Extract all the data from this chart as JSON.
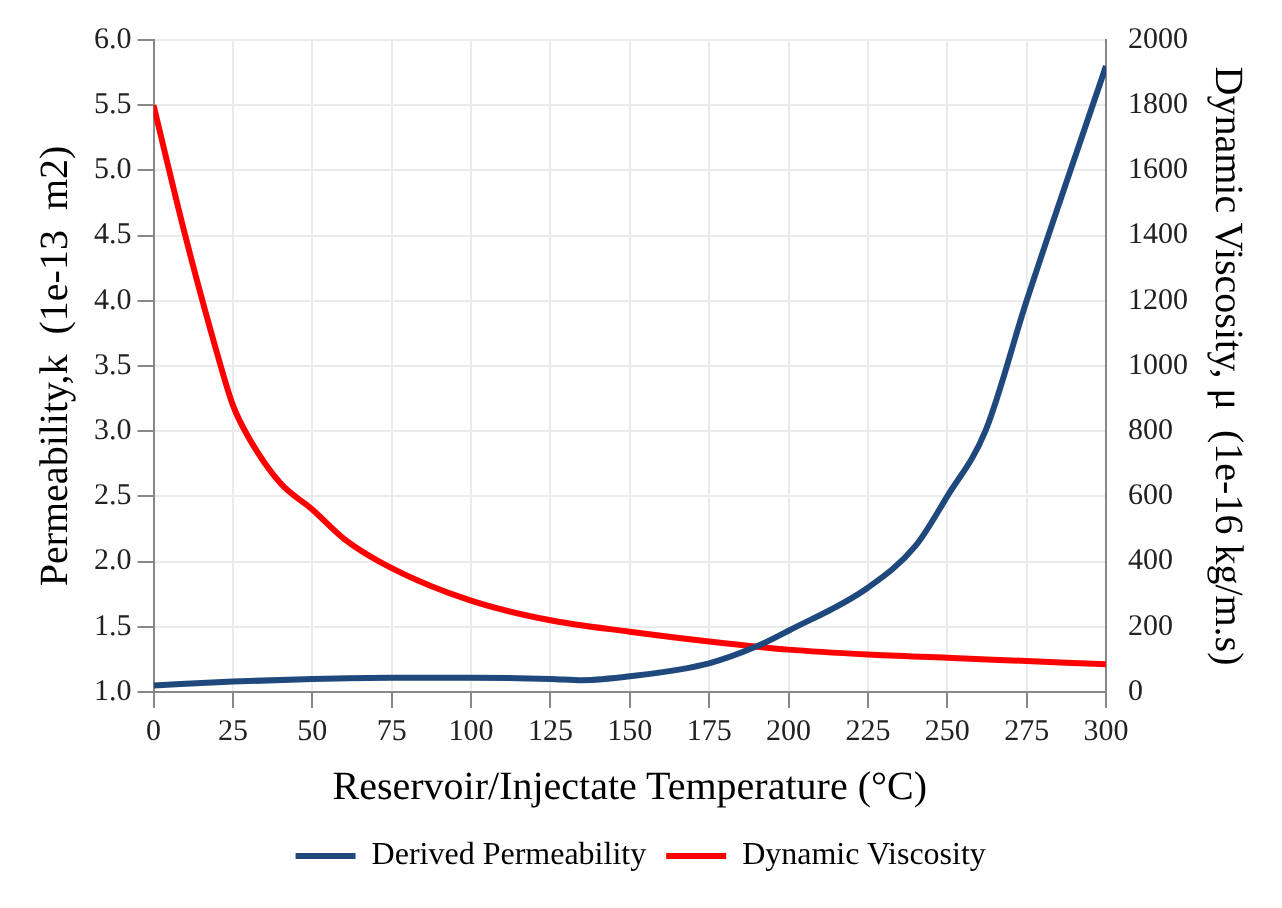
{
  "chart_data": {
    "type": "line",
    "xlabel": "Reservoir/Injectate Temperature (°C)",
    "ylabel": "Permeability,k  (1e-13  m2)",
    "y2label": "Dynamic Viscosity, μ  (1e-16 kg/m.s)",
    "xlim": [
      0,
      300
    ],
    "xticks": [
      0,
      25,
      50,
      75,
      100,
      125,
      150,
      175,
      200,
      225,
      250,
      275,
      300
    ],
    "ylim": [
      1,
      6
    ],
    "yticks": [
      {
        "value": 1,
        "label": "1.0"
      },
      {
        "value": 1.5,
        "label": "1.5"
      },
      {
        "value": 2,
        "label": "2.0"
      },
      {
        "value": 2.5,
        "label": "2.5"
      },
      {
        "value": 3,
        "label": "3.0"
      },
      {
        "value": 3.5,
        "label": "3.5"
      },
      {
        "value": 4,
        "label": "4.0"
      },
      {
        "value": 4.5,
        "label": "4.5"
      },
      {
        "value": 5,
        "label": "5.0"
      },
      {
        "value": 5.5,
        "label": "5.5"
      },
      {
        "value": 6,
        "label": "6.0"
      }
    ],
    "y2lim": [
      0,
      2000
    ],
    "y2ticks": [
      0,
      200,
      400,
      600,
      800,
      1000,
      1200,
      1400,
      1600,
      1800,
      2000
    ],
    "grid": true,
    "legend": "bottom",
    "marker": "none",
    "line_style": "solid",
    "series": [
      {
        "name": "Derived Permeability",
        "color": "#1f497d",
        "x": [
          0,
          25,
          50,
          75,
          100,
          125,
          135,
          150,
          175,
          190,
          200,
          225,
          240,
          250,
          262,
          275,
          300
        ],
        "values": [
          1.05,
          1.08,
          1.1,
          1.11,
          1.11,
          1.1,
          1.09,
          1.12,
          1.22,
          1.35,
          1.47,
          1.8,
          2.12,
          2.5,
          3.0,
          4.0,
          5.8
        ]
      },
      {
        "name": "Dynamic Viscosity",
        "color": "#ff0000",
        "axis": "y2",
        "x": [
          0,
          10,
          20,
          25,
          30,
          40,
          50,
          60,
          75,
          100,
          125,
          150,
          175,
          200,
          225,
          250,
          275,
          300
        ],
        "values": [
          1800,
          1400,
          1040,
          880,
          780,
          640,
          560,
          470,
          380,
          280,
          220,
          185,
          155,
          130,
          115,
          105,
          95,
          85
        ]
      }
    ]
  }
}
